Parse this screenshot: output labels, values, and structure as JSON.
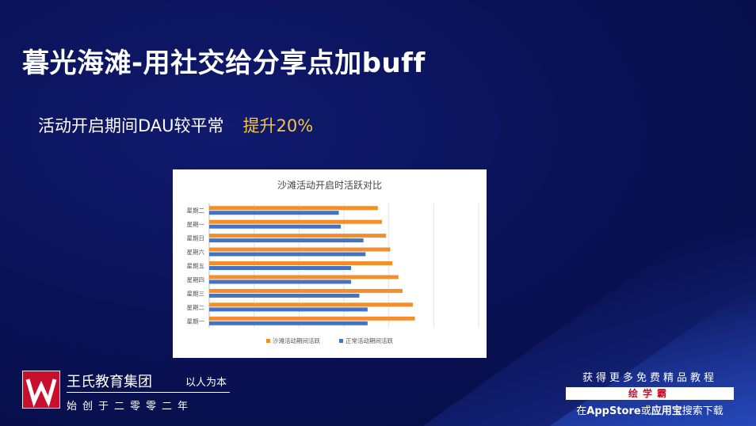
{
  "slide": {
    "title": "暮光海滩-用社交给分享点加buff",
    "subtitle": "活动开启期间DAU较平常",
    "highlight": "提升20%"
  },
  "chart_data": {
    "type": "bar",
    "orientation": "horizontal",
    "title": "沙滩活动开启时活跃对比",
    "categories": [
      "星期一",
      "星期二",
      "星期三",
      "星期四",
      "星期五",
      "星期六",
      "星期日",
      "星期一",
      "星期二"
    ],
    "series": [
      {
        "name": "沙滩活动期间活跃",
        "color": "#f28e2b",
        "values": [
          100,
          99,
          94,
          92,
          89,
          88,
          86,
          84,
          82
        ]
      },
      {
        "name": "正常活动期间活跃",
        "color": "#4472c4",
        "values": [
          77,
          77,
          73,
          69,
          69,
          76,
          75,
          64,
          63
        ]
      }
    ],
    "xlim": [
      0,
      131
    ],
    "grid": true,
    "legend": "bottom"
  },
  "brand": {
    "name": "王氏教育集团",
    "motto": "以人为本",
    "founded": "始创于二零零二年",
    "logo_icon": "w-logo-icon"
  },
  "promo": {
    "top": "获得更多免费精品教程",
    "bar": "绘学霸",
    "bottom_prefix": "在",
    "bottom_store1": "AppStore",
    "bottom_mid": "或",
    "bottom_store2": "应用宝",
    "bottom_suffix": "搜索下载"
  }
}
